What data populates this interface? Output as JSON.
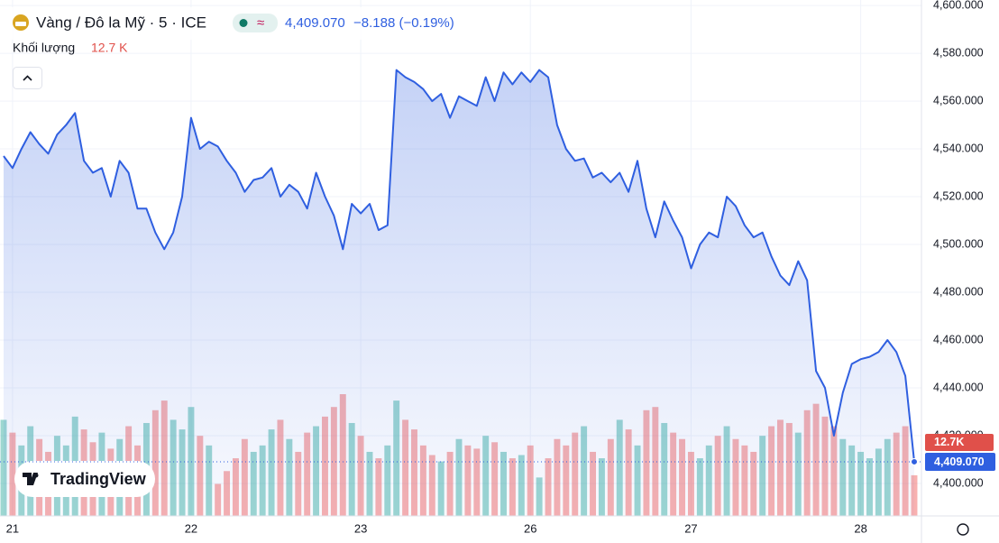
{
  "chart_data": {
    "type": "area",
    "symbol": "Vàng / Đô la Mỹ · 5 · ICE",
    "last_price_label": "4,409.070",
    "change_label": "−8.188 (−0.19%)",
    "volume_title": "Khối lượng",
    "volume_last_label": "12.7 K",
    "volume_badge": "12.7K",
    "brand": "TradingView",
    "categories": [
      null,
      "21",
      null,
      null,
      null,
      null,
      null,
      null,
      null,
      null,
      null,
      null,
      null,
      null,
      null,
      null,
      null,
      null,
      null,
      null,
      null,
      "22",
      null,
      null,
      null,
      null,
      null,
      null,
      null,
      null,
      null,
      null,
      null,
      null,
      null,
      null,
      null,
      null,
      null,
      null,
      "23",
      null,
      null,
      null,
      null,
      null,
      null,
      null,
      null,
      null,
      null,
      null,
      null,
      null,
      null,
      null,
      null,
      null,
      null,
      "26",
      null,
      null,
      null,
      null,
      null,
      null,
      null,
      null,
      null,
      null,
      null,
      null,
      null,
      null,
      null,
      null,
      null,
      "27",
      null,
      null,
      null,
      null,
      null,
      null,
      null,
      null,
      null,
      null,
      null,
      null,
      null,
      null,
      null,
      null,
      null,
      null,
      "28",
      null,
      null,
      null,
      null,
      null,
      null
    ],
    "series": [
      {
        "name": "Vàng / Đô la Mỹ",
        "color": "#2f5fe0",
        "values": [
          4537,
          4532,
          4540,
          4547,
          4542,
          4538,
          4546,
          4550,
          4555,
          4535,
          4530,
          4532,
          4520,
          4535,
          4530,
          4515,
          4515,
          4505,
          4498,
          4505,
          4520,
          4553,
          4540,
          4543,
          4541,
          4535,
          4530,
          4522,
          4527,
          4528,
          4532,
          4520,
          4525,
          4522,
          4515,
          4530,
          4520,
          4512,
          4498,
          4517,
          4513,
          4517,
          4506,
          4508,
          4573,
          4570,
          4568,
          4565,
          4560,
          4563,
          4553,
          4562,
          4560,
          4558,
          4570,
          4560,
          4572,
          4567,
          4572,
          4568,
          4573,
          4570,
          4550,
          4540,
          4535,
          4536,
          4528,
          4530,
          4526,
          4530,
          4522,
          4535,
          4515,
          4503,
          4518,
          4510,
          4503,
          4490,
          4500,
          4505,
          4503,
          4520,
          4516,
          4508,
          4503,
          4505,
          4495,
          4487,
          4483,
          4493,
          4485,
          4447,
          4440,
          4420,
          4438,
          4450,
          4452,
          4453,
          4455,
          4460,
          4455,
          4445,
          4409.07
        ]
      }
    ],
    "volume": {
      "values": [
        30,
        26,
        22,
        28,
        24,
        20,
        25,
        22,
        31,
        27,
        23,
        26,
        21,
        24,
        28,
        22,
        29,
        33,
        36,
        30,
        27,
        34,
        25,
        22,
        10,
        14,
        18,
        24,
        20,
        22,
        27,
        30,
        24,
        20,
        26,
        28,
        31,
        34,
        38,
        29,
        25,
        20,
        18,
        22,
        36,
        30,
        27,
        22,
        19,
        17,
        20,
        24,
        22,
        21,
        25,
        23,
        20,
        18,
        19,
        22,
        12,
        18,
        24,
        22,
        26,
        28,
        20,
        18,
        24,
        30,
        27,
        22,
        33,
        34,
        29,
        26,
        24,
        20,
        18,
        22,
        25,
        28,
        24,
        22,
        20,
        25,
        28,
        30,
        29,
        26,
        33,
        35,
        31,
        28,
        24,
        22,
        20,
        18,
        21,
        24,
        26,
        28,
        12.7
      ]
    },
    "ylim": [
      4386.4,
      4602.3
    ],
    "yticks": [
      {
        "value": 4400,
        "label": "4,400.000"
      },
      {
        "value": 4420,
        "label": "4,420.000"
      },
      {
        "value": 4440,
        "label": "4,440.000"
      },
      {
        "value": 4460,
        "label": "4,460.000"
      },
      {
        "value": 4480,
        "label": "4,480.000"
      },
      {
        "value": 4500,
        "label": "4,500.000"
      },
      {
        "value": 4520,
        "label": "4,520.000"
      },
      {
        "value": 4540,
        "label": "4,540.000"
      },
      {
        "value": 4560,
        "label": "4,560.000"
      },
      {
        "value": 4580,
        "label": "4,580.000"
      },
      {
        "value": 4600,
        "label": "4,600.000"
      }
    ],
    "grid": true
  }
}
